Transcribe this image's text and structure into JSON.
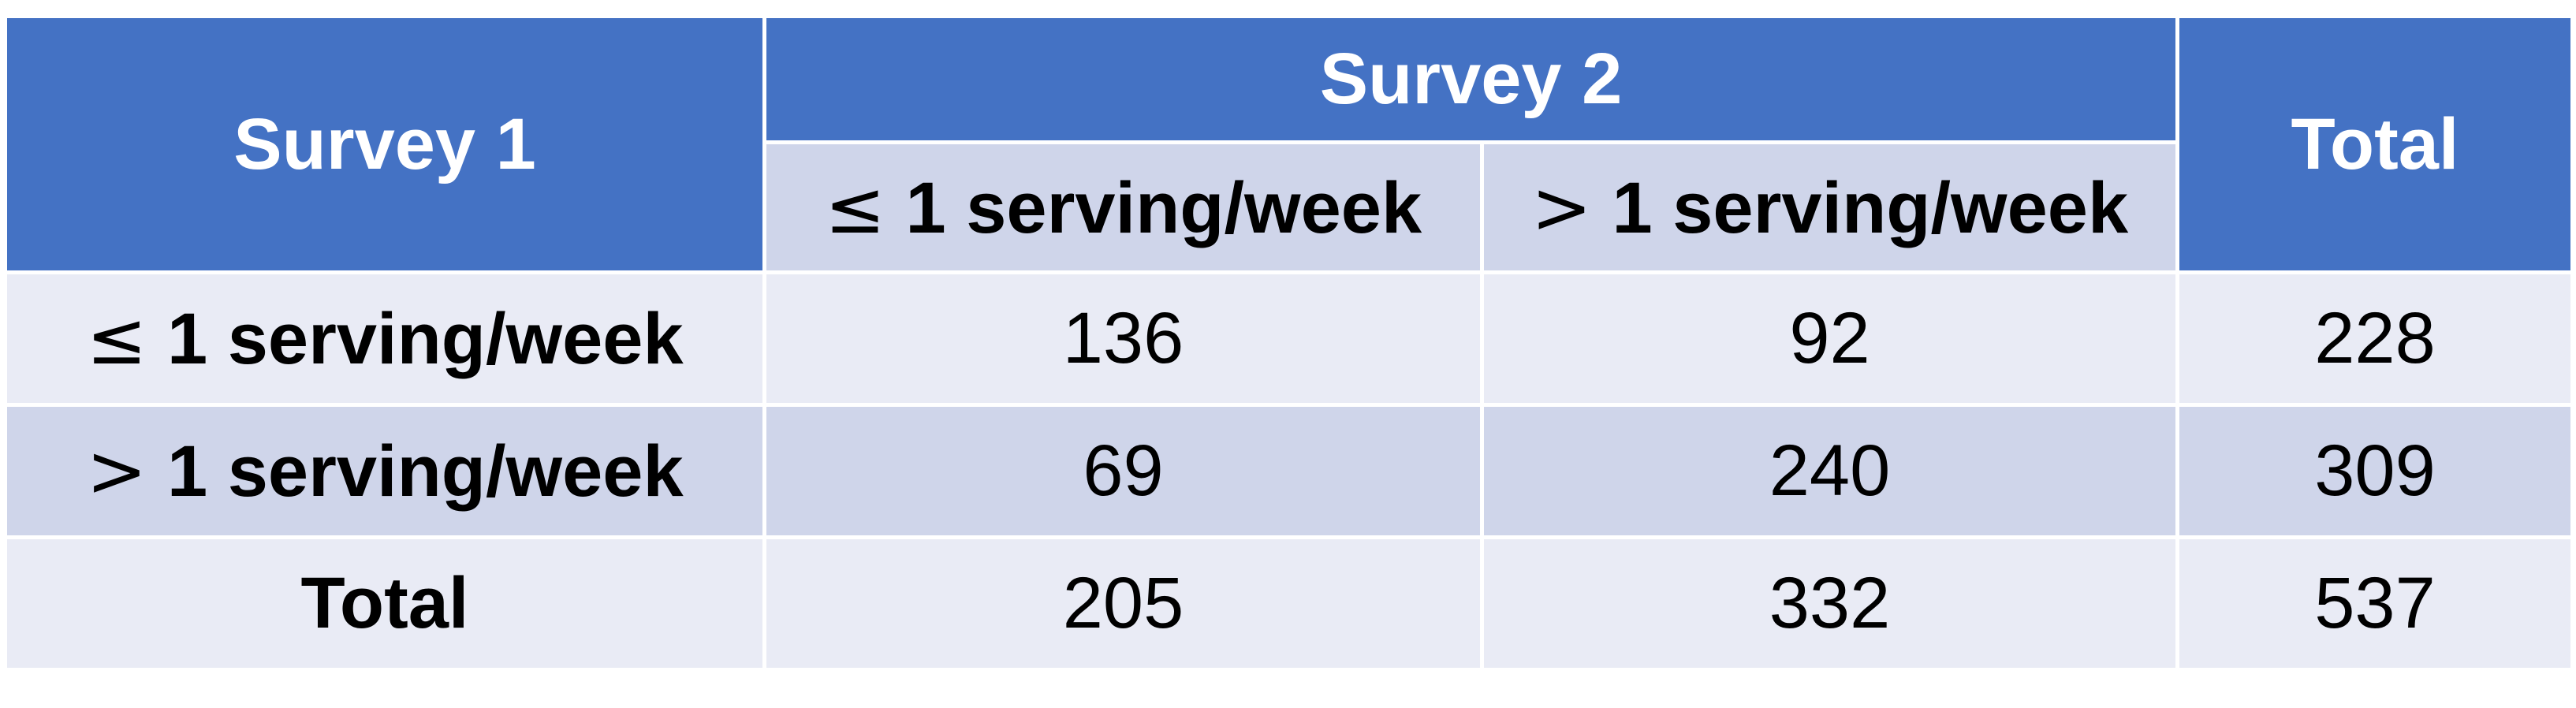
{
  "chart_data": {
    "type": "table",
    "title": "",
    "row_header": "Survey 1",
    "column_group_header": "Survey 2",
    "total_header": "Total",
    "column_labels": [
      {
        "symbol": "≤",
        "text": " 1 serving/week"
      },
      {
        "symbol": ">",
        "text": " 1 serving/week"
      }
    ],
    "rows": [
      {
        "symbol": "≤",
        "label": " 1 serving/week",
        "values": [
          "136",
          "92"
        ],
        "total": "228"
      },
      {
        "symbol": ">",
        "label": " 1 serving/week",
        "values": [
          "69",
          "240"
        ],
        "total": "309"
      }
    ],
    "totals_row": {
      "label": "Total",
      "values": [
        "205",
        "332"
      ],
      "total": "537"
    }
  },
  "colors": {
    "header_bg": "#4472c4",
    "header_text": "#ffffff",
    "band_dark": "#cfd5ea",
    "band_light": "#e9ebf5"
  }
}
